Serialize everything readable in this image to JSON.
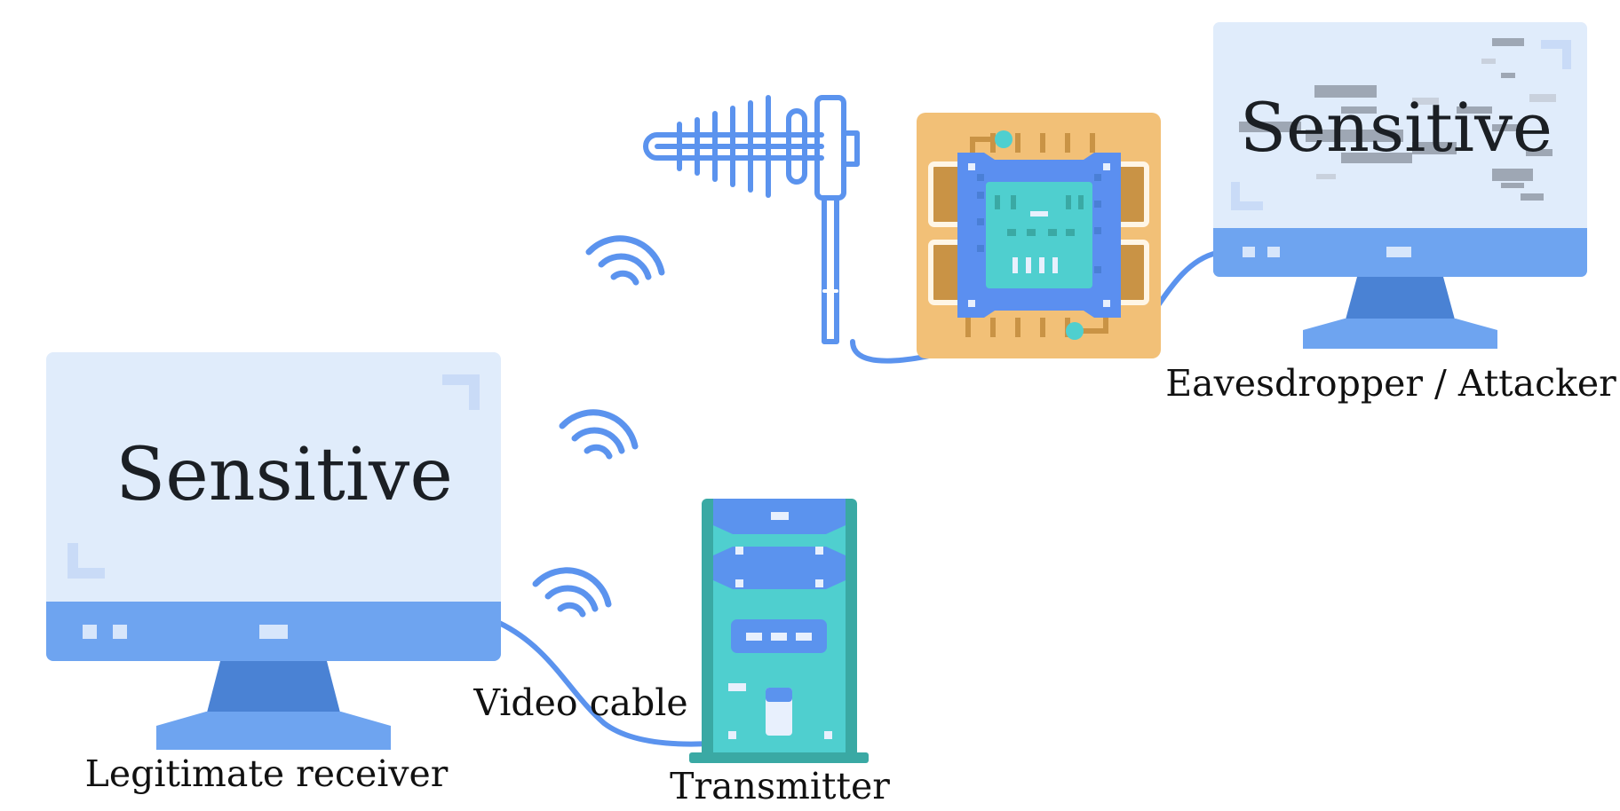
{
  "labels": {
    "legit_screen_text": "Sensitive",
    "attacker_screen_text": "Sensitive",
    "legit_receiver": "Legitimate receiver",
    "video_cable": "Video cable",
    "transmitter": "Transmitter",
    "attacker": "Eavesdropper / Attacker"
  },
  "colors": {
    "screen_light": "#e0ecfb",
    "screen_bar": "#6ea4f0",
    "stand": "#4a82d4",
    "base": "#6ea4f0",
    "cable": "#5b93ee",
    "tower_body": "#4fcfcf",
    "tower_side": "#3aa9a4",
    "tower_accent": "#5b93ee",
    "board": "#f2c077",
    "board_pad": "#c99345",
    "chip_blue": "#5b8ff0",
    "chip_core": "#4fcfcf",
    "noise_gray": "#8e96a3"
  },
  "icons": {
    "legit_monitor": "monitor-icon",
    "attacker_monitor": "monitor-icon",
    "transmitter": "computer-tower-icon",
    "antenna": "yagi-antenna-icon",
    "sdr": "circuit-board-icon",
    "emanation": "wifi-signal-icon"
  }
}
